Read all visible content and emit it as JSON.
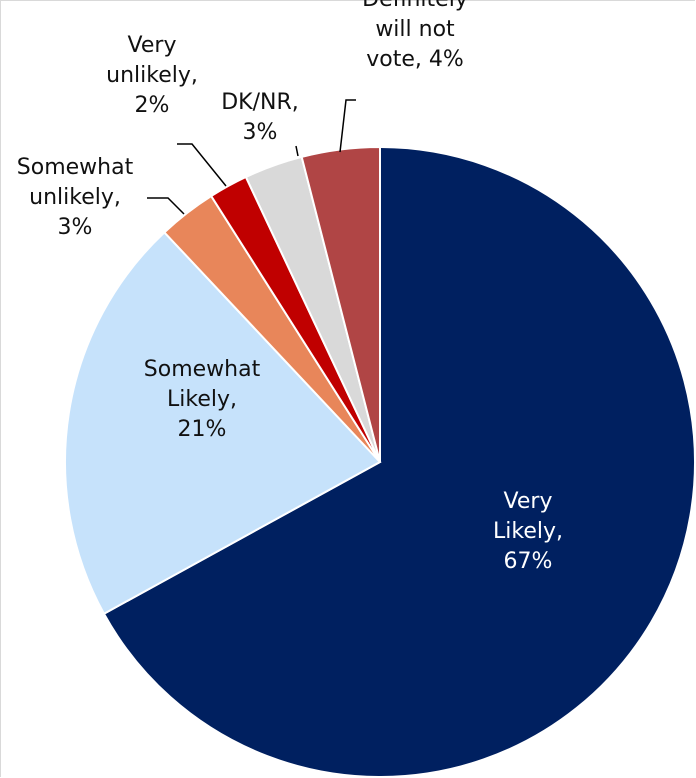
{
  "chart_data": {
    "type": "pie",
    "title": "",
    "slices": [
      {
        "label": "Very Likely",
        "label_lines": [
          "Very",
          "Likely,",
          "67%"
        ],
        "value": 67,
        "color": "#002060"
      },
      {
        "label": "Somewhat Likely",
        "label_lines": [
          "Somewhat",
          "Likely,",
          "21%"
        ],
        "value": 21,
        "color": "#c6e2fb"
      },
      {
        "label": "Somewhat unlikely",
        "label_lines": [
          "Somewhat",
          "unlikely,",
          "3%"
        ],
        "value": 3,
        "color": "#e8865a"
      },
      {
        "label": "Very unlikely",
        "label_lines": [
          "Very",
          "unlikely,",
          "2%"
        ],
        "value": 2,
        "color": "#c00000"
      },
      {
        "label": "DK/NR",
        "label_lines": [
          "DK/NR,",
          "3%"
        ],
        "value": 3,
        "color": "#d9d9d9"
      },
      {
        "label": "Definitely will not vote",
        "label_lines": [
          "Definitely",
          "will not",
          "vote, 4%"
        ],
        "value": 4,
        "color": "#b04545"
      }
    ],
    "legend": "none",
    "start_angle": "12 o'clock",
    "direction": "clockwise"
  }
}
